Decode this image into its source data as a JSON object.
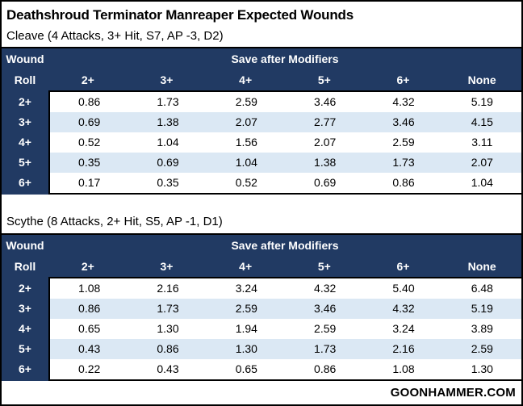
{
  "title": "Deathshroud Terminator Manreaper Expected Wounds",
  "footer": "GOONHAMMER.COM",
  "colors": {
    "header_bg": "#213a63",
    "header_text": "#ffffff",
    "row_alt": "#dbe8f4",
    "border": "#000000"
  },
  "chart_data": [
    {
      "type": "table",
      "subtitle": "Cleave (4 Attacks, 3+ Hit, S7, AP -3, D2)",
      "row_header_line1": "Wound",
      "row_header_line2": "Roll",
      "column_group": "Save after Modifiers",
      "columns": [
        "2+",
        "3+",
        "4+",
        "5+",
        "6+",
        "None"
      ],
      "rows": [
        {
          "label": "2+",
          "values": [
            "0.86",
            "1.73",
            "2.59",
            "3.46",
            "4.32",
            "5.19"
          ]
        },
        {
          "label": "3+",
          "values": [
            "0.69",
            "1.38",
            "2.07",
            "2.77",
            "3.46",
            "4.15"
          ]
        },
        {
          "label": "4+",
          "values": [
            "0.52",
            "1.04",
            "1.56",
            "2.07",
            "2.59",
            "3.11"
          ]
        },
        {
          "label": "5+",
          "values": [
            "0.35",
            "0.69",
            "1.04",
            "1.38",
            "1.73",
            "2.07"
          ]
        },
        {
          "label": "6+",
          "values": [
            "0.17",
            "0.35",
            "0.52",
            "0.69",
            "0.86",
            "1.04"
          ]
        }
      ]
    },
    {
      "type": "table",
      "subtitle": "Scythe (8 Attacks, 2+ Hit, S5, AP -1, D1)",
      "row_header_line1": "Wound",
      "row_header_line2": "Roll",
      "column_group": "Save after Modifiers",
      "columns": [
        "2+",
        "3+",
        "4+",
        "5+",
        "6+",
        "None"
      ],
      "rows": [
        {
          "label": "2+",
          "values": [
            "1.08",
            "2.16",
            "3.24",
            "4.32",
            "5.40",
            "6.48"
          ]
        },
        {
          "label": "3+",
          "values": [
            "0.86",
            "1.73",
            "2.59",
            "3.46",
            "4.32",
            "5.19"
          ]
        },
        {
          "label": "4+",
          "values": [
            "0.65",
            "1.30",
            "1.94",
            "2.59",
            "3.24",
            "3.89"
          ]
        },
        {
          "label": "5+",
          "values": [
            "0.43",
            "0.86",
            "1.30",
            "1.73",
            "2.16",
            "2.59"
          ]
        },
        {
          "label": "6+",
          "values": [
            "0.22",
            "0.43",
            "0.65",
            "0.86",
            "1.08",
            "1.30"
          ]
        }
      ]
    }
  ]
}
